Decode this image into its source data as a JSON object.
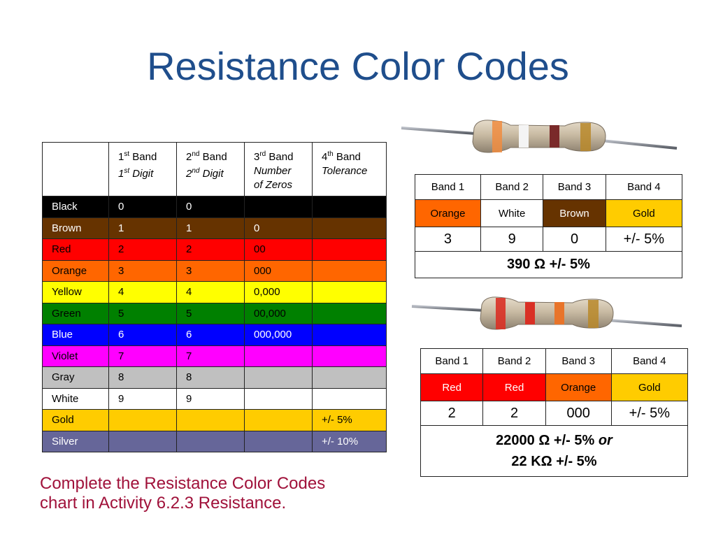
{
  "title": "Resistance Color Codes",
  "main_table": {
    "header": {
      "b1_label": "1",
      "b1_sup": "st",
      "b1_word": " Band",
      "b1_sub": "1",
      "b1_subsup": "st",
      "b1_subword": " Digit",
      "b2_label": "2",
      "b2_sup": "nd",
      "b2_word": " Band",
      "b2_sub": "2",
      "b2_subsup": "nd",
      "b2_subword": " Digit",
      "b3_label": "3",
      "b3_sup": "rd",
      "b3_word": " Band",
      "b3_sub1": "Number",
      "b3_sub2": "of Zeros",
      "b4_label": "4",
      "b4_sup": "th",
      "b4_word": " Band",
      "b4_sub": "Tolerance"
    },
    "rows": [
      {
        "color": "Black",
        "d1": "0",
        "d2": "0",
        "zeros": "",
        "tol": "",
        "bg": "#000000",
        "fg": "#ffffff"
      },
      {
        "color": "Brown",
        "d1": "1",
        "d2": "1",
        "zeros": "0",
        "tol": "",
        "bg": "#663300",
        "fg": "#ffffff"
      },
      {
        "color": "Red",
        "d1": "2",
        "d2": "2",
        "zeros": "00",
        "tol": "",
        "bg": "#ff0000",
        "fg": "#000000"
      },
      {
        "color": "Orange",
        "d1": "3",
        "d2": "3",
        "zeros": "000",
        "tol": "",
        "bg": "#ff6600",
        "fg": "#000000"
      },
      {
        "color": "Yellow",
        "d1": "4",
        "d2": "4",
        "zeros": "0,000",
        "tol": "",
        "bg": "#ffff00",
        "fg": "#000000"
      },
      {
        "color": "Green",
        "d1": "5",
        "d2": "5",
        "zeros": "00,000",
        "tol": "",
        "bg": "#008000",
        "fg": "#000000"
      },
      {
        "color": "Blue",
        "d1": "6",
        "d2": "6",
        "zeros": "000,000",
        "tol": "",
        "bg": "#0000ff",
        "fg": "#ffffff"
      },
      {
        "color": "Violet",
        "d1": "7",
        "d2": "7",
        "zeros": "",
        "tol": "",
        "bg": "#ff00ff",
        "fg": "#000000"
      },
      {
        "color": "Gray",
        "d1": "8",
        "d2": "8",
        "zeros": "",
        "tol": "",
        "bg": "#c0c0c0",
        "fg": "#000000"
      },
      {
        "color": "White",
        "d1": "9",
        "d2": "9",
        "zeros": "",
        "tol": "",
        "bg": "#ffffff",
        "fg": "#000000"
      },
      {
        "color": "Gold",
        "d1": "",
        "d2": "",
        "zeros": "",
        "tol": "+/- 5%",
        "bg": "#ffcc00",
        "fg": "#000000"
      },
      {
        "color": "Silver",
        "d1": "",
        "d2": "",
        "zeros": "",
        "tol": "+/- 10%",
        "bg": "#666699",
        "fg": "#ffffff"
      }
    ]
  },
  "example1": {
    "headers": [
      "Band 1",
      "Band 2",
      "Band 3",
      "Band 4"
    ],
    "colors": [
      {
        "name": "Orange",
        "bg": "#ff6600",
        "fg": "#000000"
      },
      {
        "name": "White",
        "bg": "#ffffff",
        "fg": "#000000"
      },
      {
        "name": "Brown",
        "bg": "#663300",
        "fg": "#ffffff"
      },
      {
        "name": "Gold",
        "bg": "#ffcc00",
        "fg": "#000000"
      }
    ],
    "digits": [
      "3",
      "9",
      "0",
      "+/- 5%"
    ],
    "result": "390 Ω +/- 5%",
    "resistor_bands": [
      "#f08c40",
      "#f4f4f4",
      "#7a2a2a",
      "#b8882a"
    ]
  },
  "example2": {
    "headers": [
      "Band 1",
      "Band 2",
      "Band 3",
      "Band 4"
    ],
    "colors": [
      {
        "name": "Red",
        "bg": "#ff0000",
        "fg": "#ffffff"
      },
      {
        "name": "Red",
        "bg": "#ff0000",
        "fg": "#ffffff"
      },
      {
        "name": "Orange",
        "bg": "#ff6600",
        "fg": "#000000"
      },
      {
        "name": "Gold",
        "bg": "#ffcc00",
        "fg": "#000000"
      }
    ],
    "digits": [
      "2",
      "2",
      "000",
      "+/- 5%"
    ],
    "result_line1": "22000 Ω +/- 5%",
    "result_or": "or",
    "result_line2": "22 KΩ +/- 5%",
    "resistor_bands": [
      "#d93025",
      "#d93025",
      "#e8742a",
      "#b8882a"
    ]
  },
  "note_line1": "Complete the Resistance Color Codes",
  "note_line2": "chart in Activity 6.2.3 Resistance."
}
